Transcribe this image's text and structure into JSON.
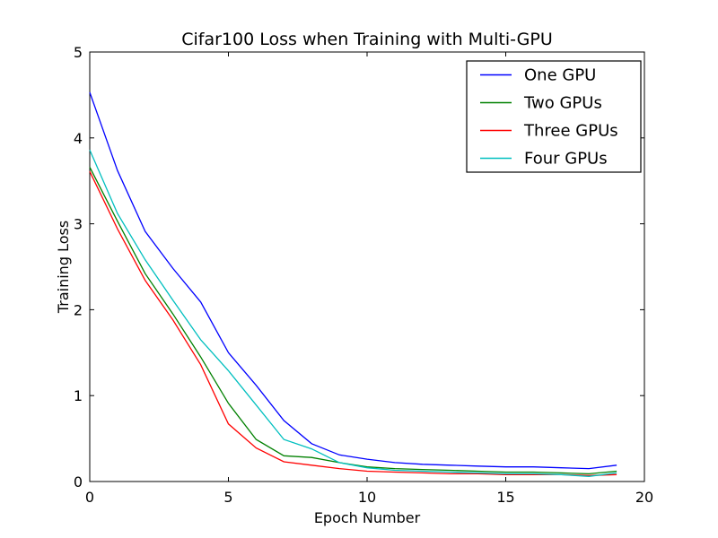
{
  "figure": {
    "background": "#ffffff",
    "axes_color": "#000000",
    "text_color": "#000000"
  },
  "chart_data": {
    "type": "line",
    "title": "Cifar100 Loss when Training with Multi-GPU",
    "xlabel": "Epoch Number",
    "ylabel": "Training Loss",
    "xlim": [
      0,
      20
    ],
    "ylim": [
      0,
      5
    ],
    "xticks": [
      0,
      5,
      10,
      15,
      20
    ],
    "yticks": [
      0,
      1,
      2,
      3,
      4,
      5
    ],
    "grid": false,
    "legend": {
      "position": "upper-right",
      "border_color": "#000000",
      "background": "#ffffff"
    },
    "x": [
      0,
      1,
      2,
      3,
      4,
      5,
      6,
      7,
      8,
      9,
      10,
      11,
      12,
      13,
      14,
      15,
      16,
      17,
      18,
      19
    ],
    "series": [
      {
        "name": "One GPU",
        "color": "#0000ff",
        "values": [
          4.53,
          3.62,
          2.91,
          2.48,
          2.09,
          1.5,
          1.12,
          0.71,
          0.44,
          0.31,
          0.26,
          0.22,
          0.2,
          0.19,
          0.18,
          0.17,
          0.17,
          0.16,
          0.15,
          0.19
        ]
      },
      {
        "name": "Two GPUs",
        "color": "#008000",
        "values": [
          3.66,
          3.03,
          2.42,
          1.95,
          1.45,
          0.91,
          0.49,
          0.3,
          0.28,
          0.22,
          0.17,
          0.15,
          0.14,
          0.13,
          0.12,
          0.11,
          0.11,
          0.1,
          0.09,
          0.12
        ]
      },
      {
        "name": "Three GPUs",
        "color": "#ff0000",
        "values": [
          3.61,
          2.94,
          2.34,
          1.88,
          1.36,
          0.67,
          0.39,
          0.23,
          0.19,
          0.15,
          0.12,
          0.11,
          0.1,
          0.09,
          0.09,
          0.08,
          0.08,
          0.08,
          0.07,
          0.08
        ]
      },
      {
        "name": "Four GPUs",
        "color": "#00bfbf",
        "values": [
          3.86,
          3.12,
          2.58,
          2.11,
          1.65,
          1.29,
          0.89,
          0.49,
          0.38,
          0.22,
          0.16,
          0.13,
          0.12,
          0.11,
          0.1,
          0.09,
          0.09,
          0.08,
          0.06,
          0.1
        ]
      }
    ]
  }
}
